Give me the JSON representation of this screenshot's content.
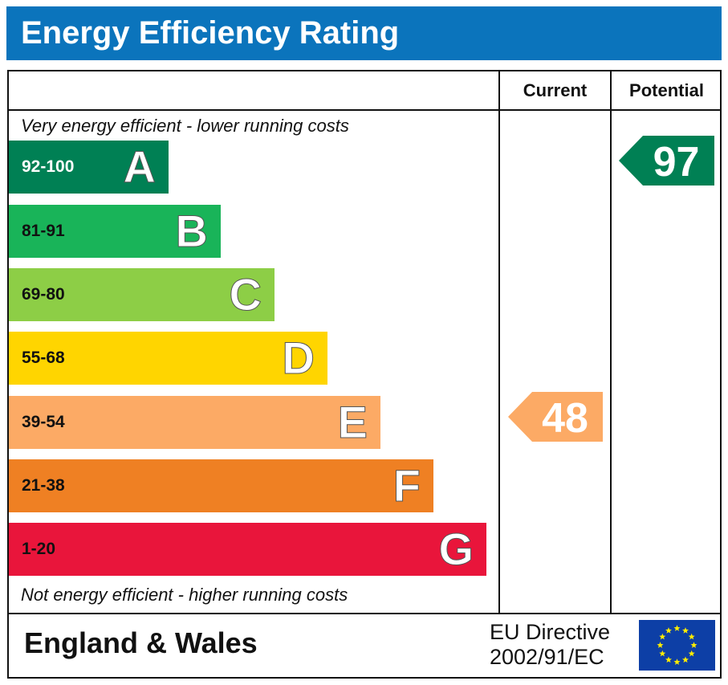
{
  "title": "Energy Efficiency Rating",
  "columns": {
    "current": "Current",
    "potential": "Potential"
  },
  "top_note": "Very energy efficient - lower running costs",
  "bottom_note": "Not energy efficient - higher running costs",
  "chart_data": {
    "type": "bar",
    "bands": [
      {
        "range": "92-100",
        "letter": "A",
        "color": "#008054",
        "text_color": "#ffffff"
      },
      {
        "range": "81-91",
        "letter": "B",
        "color": "#19b459",
        "text_color": "#111111"
      },
      {
        "range": "69-80",
        "letter": "C",
        "color": "#8dce46",
        "text_color": "#111111"
      },
      {
        "range": "55-68",
        "letter": "D",
        "color": "#ffd500",
        "text_color": "#111111"
      },
      {
        "range": "39-54",
        "letter": "E",
        "color": "#fcaa65",
        "text_color": "#111111"
      },
      {
        "range": "21-38",
        "letter": "F",
        "color": "#ef8023",
        "text_color": "#111111"
      },
      {
        "range": "1-20",
        "letter": "G",
        "color": "#e9153b",
        "text_color": "#111111"
      }
    ],
    "current": {
      "value": "48",
      "band": "E",
      "color": "#fcaa65"
    },
    "potential": {
      "value": "97",
      "band": "A",
      "color": "#008054"
    }
  },
  "footer": {
    "region": "England & Wales",
    "directive_line1": "EU Directive",
    "directive_line2": "2002/91/EC"
  },
  "colors": {
    "title_bar": "#0b74bc",
    "eu_flag": "#0d3fa6",
    "eu_stars": "#ffed00"
  }
}
